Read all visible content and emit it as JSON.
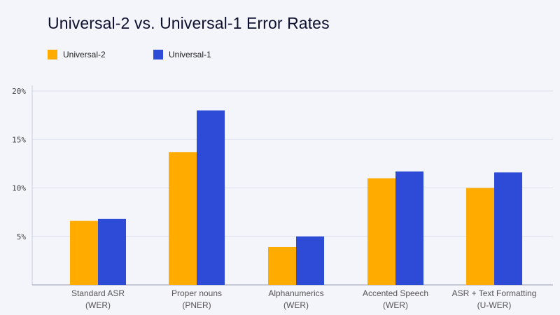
{
  "chart_data": {
    "type": "bar",
    "title": "Universal-2 vs. Universal-1 Error Rates",
    "xlabel": "",
    "ylabel": "",
    "ylim": [
      0,
      20
    ],
    "y_ticks": [
      5,
      10,
      15,
      20
    ],
    "y_tick_labels": [
      "5%",
      "10%",
      "15%",
      "20%"
    ],
    "grid": true,
    "legend_position": "top-left",
    "categories": [
      {
        "line1": "Standard ASR",
        "line2": "(WER)"
      },
      {
        "line1": "Proper nouns",
        "line2": "(PNER)"
      },
      {
        "line1": "Alphanumerics",
        "line2": "(WER)"
      },
      {
        "line1": "Accented Speech",
        "line2": "(WER)"
      },
      {
        "line1": "ASR + Text Formatting",
        "line2": "(U-WER)"
      }
    ],
    "series": [
      {
        "name": "Universal-2",
        "color": "#ffab00",
        "values": [
          6.6,
          13.7,
          3.9,
          11.0,
          10.0
        ]
      },
      {
        "name": "Universal-1",
        "color": "#2d4bd6",
        "values": [
          6.8,
          18.0,
          5.0,
          11.7,
          11.6
        ]
      }
    ]
  }
}
